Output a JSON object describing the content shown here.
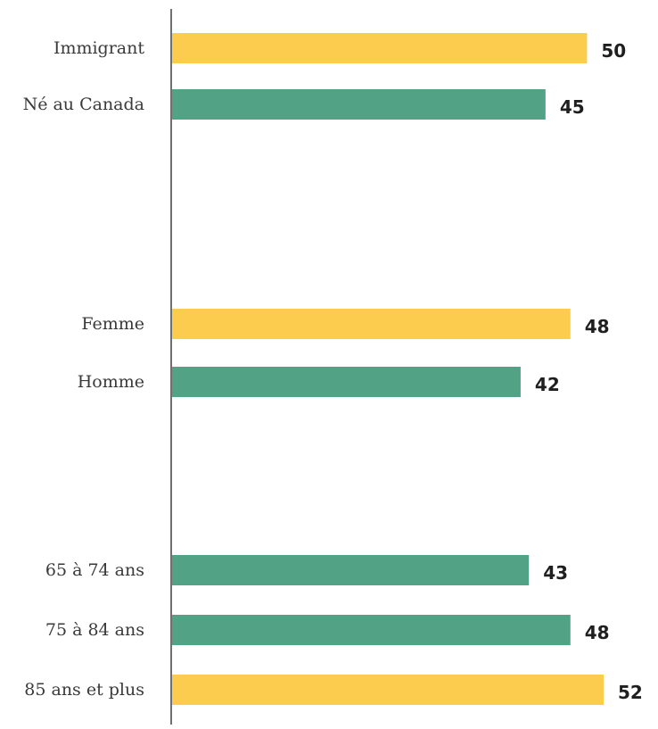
{
  "chart_data": {
    "type": "bar",
    "orientation": "horizontal",
    "title": "",
    "xlabel": "",
    "ylabel": "",
    "xlim": [
      0,
      52
    ],
    "grid": false,
    "legend": "none",
    "colors": {
      "highlight": "#FCCC4F",
      "base": "#52A386",
      "axis": "#333333"
    },
    "categories": [
      "Immigrant",
      "Né au Canada",
      "Femme",
      "Homme",
      "65 à 74 ans",
      "75 à 84 ans",
      "85 ans et plus"
    ],
    "values": [
      50,
      45,
      48,
      42,
      43,
      48,
      52
    ],
    "bar_colors": [
      "highlight",
      "base",
      "highlight",
      "base",
      "base",
      "base",
      "highlight"
    ]
  }
}
